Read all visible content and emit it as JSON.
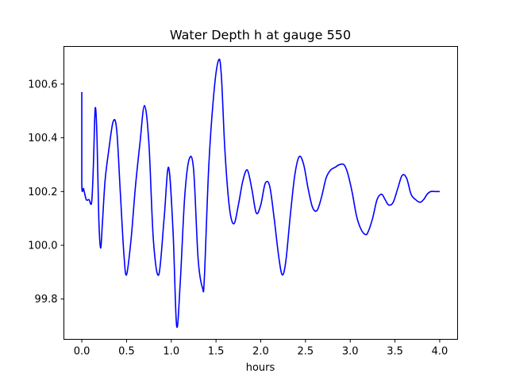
{
  "chart_data": {
    "type": "line",
    "title": "Water Depth h at gauge 550",
    "xlabel": "hours",
    "ylabel": "",
    "xlim": [
      -0.2,
      4.2
    ],
    "ylim": [
      99.65,
      100.74
    ],
    "xticks": [
      0.0,
      0.5,
      1.0,
      1.5,
      2.0,
      2.5,
      3.0,
      3.5,
      4.0
    ],
    "xtick_labels": [
      "0.0",
      "0.5",
      "1.0",
      "1.5",
      "2.0",
      "2.5",
      "3.0",
      "3.5",
      "4.0"
    ],
    "yticks": [
      99.8,
      100.0,
      100.2,
      100.4,
      100.6
    ],
    "ytick_labels": [
      "99.8",
      "100.0",
      "100.2",
      "100.4",
      "100.6"
    ],
    "grid": false,
    "series": [
      {
        "color": "#0000ff",
        "x": [
          0.0,
          0.0,
          0.02,
          0.05,
          0.08,
          0.11,
          0.13,
          0.15,
          0.17,
          0.19,
          0.21,
          0.23,
          0.26,
          0.3,
          0.35,
          0.39,
          0.43,
          0.47,
          0.5,
          0.55,
          0.6,
          0.65,
          0.7,
          0.75,
          0.8,
          0.86,
          0.92,
          0.97,
          1.02,
          1.06,
          1.1,
          1.15,
          1.2,
          1.25,
          1.3,
          1.35,
          1.37,
          1.42,
          1.48,
          1.53,
          1.56,
          1.6,
          1.65,
          1.7,
          1.75,
          1.8,
          1.85,
          1.9,
          1.95,
          2.0,
          2.05,
          2.1,
          2.15,
          2.2,
          2.24,
          2.28,
          2.33,
          2.38,
          2.43,
          2.48,
          2.53,
          2.58,
          2.63,
          2.68,
          2.73,
          2.78,
          2.83,
          2.88,
          2.93,
          2.97,
          3.02,
          3.07,
          3.12,
          3.17,
          3.2,
          3.25,
          3.3,
          3.35,
          3.39,
          3.43,
          3.48,
          3.53,
          3.58,
          3.63,
          3.68,
          3.73,
          3.78,
          3.82,
          3.86,
          3.9,
          3.95,
          4.0
        ],
        "y": [
          100.57,
          100.23,
          100.21,
          100.17,
          100.17,
          100.16,
          100.3,
          100.51,
          100.4,
          100.1,
          99.99,
          100.08,
          100.24,
          100.35,
          100.46,
          100.43,
          100.2,
          99.97,
          99.89,
          100.02,
          100.22,
          100.38,
          100.52,
          100.38,
          100.02,
          99.89,
          100.1,
          100.29,
          100.05,
          99.7,
          99.86,
          100.18,
          100.32,
          100.28,
          99.95,
          99.84,
          99.88,
          100.3,
          100.58,
          100.69,
          100.63,
          100.35,
          100.14,
          100.08,
          100.15,
          100.24,
          100.28,
          100.21,
          100.12,
          100.15,
          100.23,
          100.22,
          100.1,
          99.96,
          99.89,
          99.94,
          100.11,
          100.26,
          100.33,
          100.3,
          100.21,
          100.14,
          100.13,
          100.18,
          100.25,
          100.28,
          100.29,
          100.3,
          100.3,
          100.27,
          100.2,
          100.11,
          100.06,
          100.04,
          100.05,
          100.1,
          100.17,
          100.19,
          100.17,
          100.15,
          100.16,
          100.21,
          100.26,
          100.25,
          100.19,
          100.17,
          100.16,
          100.17,
          100.19,
          100.2,
          100.2,
          100.2
        ]
      }
    ]
  }
}
